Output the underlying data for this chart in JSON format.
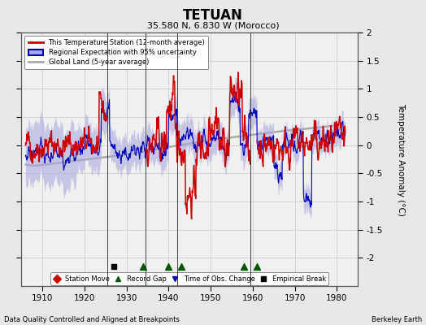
{
  "title": "TETUAN",
  "subtitle": "35.580 N, 6.830 W (Morocco)",
  "ylabel": "Temperature Anomaly (°C)",
  "xlabel_left": "Data Quality Controlled and Aligned at Breakpoints",
  "xlabel_right": "Berkeley Earth",
  "xlim": [
    1905,
    1985
  ],
  "ylim": [
    -2.5,
    2.0
  ],
  "yticks": [
    -2.0,
    -1.5,
    -1.0,
    -0.5,
    0.0,
    0.5,
    1.0,
    1.5,
    2.0
  ],
  "xticks": [
    1910,
    1920,
    1930,
    1940,
    1950,
    1960,
    1970,
    1980
  ],
  "red_line_color": "#CC0000",
  "blue_line_color": "#0000BB",
  "blue_fill_color": "#AAAADD",
  "gray_line_color": "#AAAAAA",
  "vertical_lines": [
    1925.5,
    1934.5,
    1942.0,
    1959.5
  ],
  "empirical_break_x": [
    1927
  ],
  "record_gap_x": [
    1934,
    1940,
    1943,
    1958,
    1961
  ],
  "time_obs_change_x": [],
  "fig_bg_color": "#E8E8E8",
  "plot_bg_color": "#F0F0F0",
  "grid_color": "#C8C8C8",
  "seed": 42
}
